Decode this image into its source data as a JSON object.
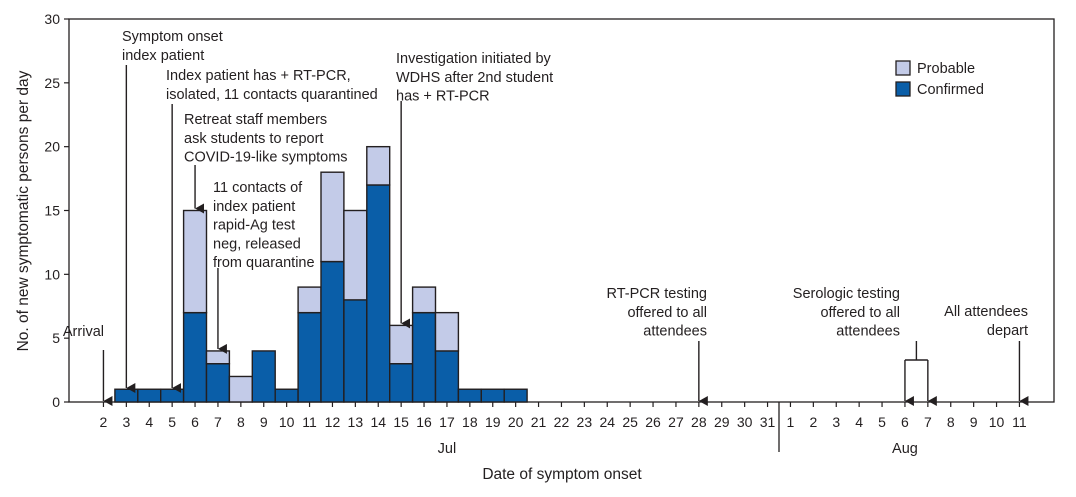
{
  "chart_data": {
    "type": "bar",
    "stacked": true,
    "xlabel": "Date of symptom onset",
    "ylabel": "No. of new symptomatic persons per day",
    "ylim": [
      0,
      30
    ],
    "yticks": [
      "0",
      "5",
      "10",
      "15",
      "20",
      "25",
      "30"
    ],
    "categories": [
      "2",
      "3",
      "4",
      "5",
      "6",
      "7",
      "8",
      "9",
      "10",
      "11",
      "12",
      "13",
      "14",
      "15",
      "16",
      "17",
      "18",
      "19",
      "20",
      "21",
      "22",
      "23",
      "24",
      "25",
      "26",
      "27",
      "28",
      "29",
      "30",
      "31",
      "1",
      "2",
      "3",
      "4",
      "5",
      "6",
      "7",
      "8",
      "9",
      "10",
      "11"
    ],
    "month_labels": [
      {
        "label": "Jul",
        "center_index": 15
      },
      {
        "label": "Aug",
        "center_index": 35
      }
    ],
    "series": [
      {
        "name": "Confirmed",
        "color": "#0a5ea8",
        "values": [
          0,
          1,
          1,
          1,
          7,
          3,
          0,
          4,
          1,
          7,
          11,
          8,
          17,
          3,
          7,
          4,
          1,
          1,
          1,
          0,
          0,
          0,
          0,
          0,
          0,
          0,
          0,
          0,
          0,
          0,
          0,
          0,
          0,
          0,
          0,
          0,
          0,
          0,
          0,
          0,
          0
        ]
      },
      {
        "name": "Probable",
        "color": "#c3cbe8",
        "values": [
          0,
          0,
          0,
          0,
          8,
          1,
          2,
          0,
          0,
          2,
          7,
          7,
          3,
          3,
          2,
          3,
          0,
          0,
          0,
          0,
          0,
          0,
          0,
          0,
          0,
          0,
          0,
          0,
          0,
          0,
          0,
          0,
          0,
          0,
          0,
          0,
          0,
          0,
          0,
          0,
          0
        ]
      }
    ],
    "legend_position": "top-right",
    "grid": false,
    "annotations": [
      {
        "lines": [
          "Arrival"
        ],
        "arrow_index": 0,
        "align": "middle"
      },
      {
        "lines": [
          "Symptom onset",
          "index patient"
        ],
        "arrow_index": 1,
        "align": "start"
      },
      {
        "lines": [
          "Index patient has + RT-PCR,",
          "isolated, 11 contacts quarantined"
        ],
        "arrow_index": 3,
        "align": "start"
      },
      {
        "lines": [
          "Retreat staff members",
          "ask students to report",
          "COVID-19-like symptoms"
        ],
        "arrow_index": 4,
        "align": "start"
      },
      {
        "lines": [
          "11 contacts of",
          "index patient",
          "rapid-Ag test",
          "neg, released",
          "from quarantine"
        ],
        "arrow_index": 5,
        "align": "start"
      },
      {
        "lines": [
          "Investigation initiated by",
          "WDHS after 2nd student",
          "has + RT-PCR"
        ],
        "arrow_index": 13,
        "align": "start"
      },
      {
        "lines": [
          "RT-PCR testing",
          "offered to all",
          "attendees"
        ],
        "arrow_index": 26,
        "align": "end"
      },
      {
        "lines": [
          "Serologic testing",
          "offered to all",
          "attendees"
        ],
        "arrow_index": 35,
        "align": "end"
      },
      {
        "lines": [
          "All attendees",
          "depart"
        ],
        "arrow_index": 40,
        "align": "end"
      }
    ]
  }
}
